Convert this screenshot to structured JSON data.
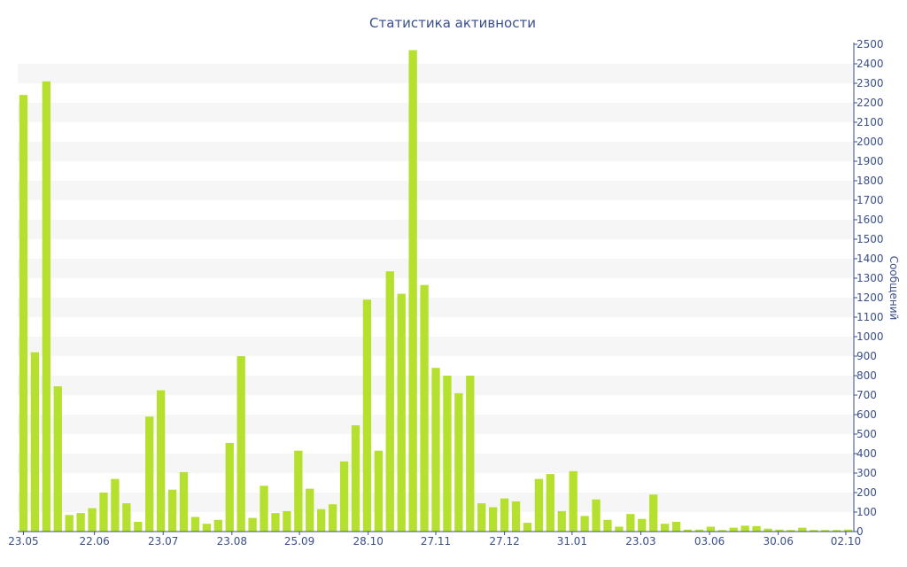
{
  "chart_data": {
    "type": "bar",
    "title": "Статистика активности",
    "ylabel": "Сообщений",
    "xlabel": "",
    "ylim": [
      0,
      2500
    ],
    "ytick_step": 100,
    "grid": "alternating horizontal bands",
    "legend": "none",
    "bar_color": "#b5e02e",
    "axis_color": "#3a4f8c",
    "x_tick_labels": [
      "23.05",
      "22.06",
      "23.07",
      "23.08",
      "25.09",
      "28.10",
      "27.11",
      "27.12",
      "31.01",
      "23.03",
      "03.06",
      "30.06",
      "02.10"
    ],
    "x_tick_positions": [
      0,
      6.2,
      12.2,
      18.2,
      24.1,
      30.1,
      36.0,
      42.0,
      47.9,
      53.9,
      59.9,
      65.9,
      71.8
    ],
    "values": [
      2240,
      920,
      2310,
      745,
      85,
      95,
      120,
      200,
      270,
      145,
      50,
      590,
      725,
      215,
      305,
      75,
      40,
      60,
      455,
      900,
      70,
      235,
      95,
      105,
      415,
      220,
      115,
      140,
      360,
      545,
      1190,
      415,
      1335,
      1220,
      2470,
      1265,
      840,
      800,
      710,
      800,
      145,
      125,
      170,
      155,
      45,
      270,
      295,
      105,
      310,
      80,
      165,
      60,
      25,
      90,
      65,
      190,
      40,
      50,
      10,
      10,
      25,
      8,
      20,
      30,
      28,
      15,
      10,
      8,
      20,
      8,
      8,
      8,
      10
    ]
  }
}
